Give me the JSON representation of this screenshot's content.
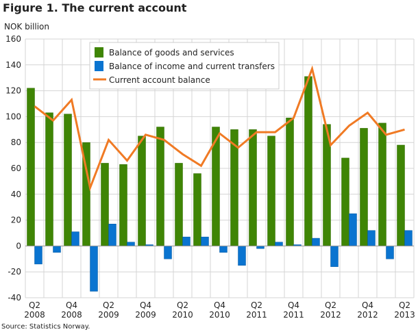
{
  "title": "Figure 1. The current account",
  "source": "Source: Statistics Norway.",
  "chart_data": {
    "type": "bar",
    "title": "Figure 1. The current account",
    "ylabel": "NOK billion",
    "ylim": [
      -40,
      160
    ],
    "yticks": [
      -40,
      -20,
      0,
      20,
      40,
      60,
      80,
      100,
      120,
      140,
      160
    ],
    "grid": true,
    "legend": "top-center",
    "categories": [
      "Q2 2008",
      "Q3 2008",
      "Q4 2008",
      "Q1 2009",
      "Q2 2009",
      "Q3 2009",
      "Q4 2009",
      "Q1 2010",
      "Q2 2010",
      "Q3 2010",
      "Q4 2010",
      "Q1 2011",
      "Q2 2011",
      "Q3 2011",
      "Q4 2011",
      "Q1 2012",
      "Q2 2012",
      "Q3 2012",
      "Q4 2012",
      "Q1 2013",
      "Q2 2013"
    ],
    "xtick_labels": [
      [
        "Q2",
        "2008"
      ],
      [
        "Q4",
        "2008"
      ],
      [
        "Q2",
        "2009"
      ],
      [
        "Q4",
        "2009"
      ],
      [
        "Q2",
        "2010"
      ],
      [
        "Q4",
        "2010"
      ],
      [
        "Q2",
        "2011"
      ],
      [
        "Q4",
        "2011"
      ],
      [
        "Q2",
        "2012"
      ],
      [
        "Q4",
        "2012"
      ],
      [
        "Q2",
        "2013"
      ]
    ],
    "series": [
      {
        "name": "Balance of goods and services",
        "type": "bar",
        "color": "#3f8505",
        "values": [
          122,
          103,
          102,
          80,
          64,
          63,
          85,
          92,
          64,
          56,
          92,
          90,
          90,
          85,
          99,
          131,
          94,
          68,
          91,
          95,
          78
        ]
      },
      {
        "name": "Balance of income and current transfers",
        "type": "bar",
        "color": "#0a74d0",
        "values": [
          -14,
          -5,
          11,
          -35,
          17,
          3,
          1,
          -10,
          7,
          7,
          -5,
          -15,
          -2,
          3,
          1,
          6,
          -16,
          25,
          12,
          -10,
          12
        ]
      },
      {
        "name": "Current account balance",
        "type": "line",
        "color": "#f07a24",
        "values": [
          108,
          97,
          113,
          45,
          82,
          66,
          86,
          82,
          71,
          62,
          87,
          76,
          88,
          88,
          99,
          137,
          78,
          93,
          103,
          86,
          90
        ]
      }
    ]
  }
}
